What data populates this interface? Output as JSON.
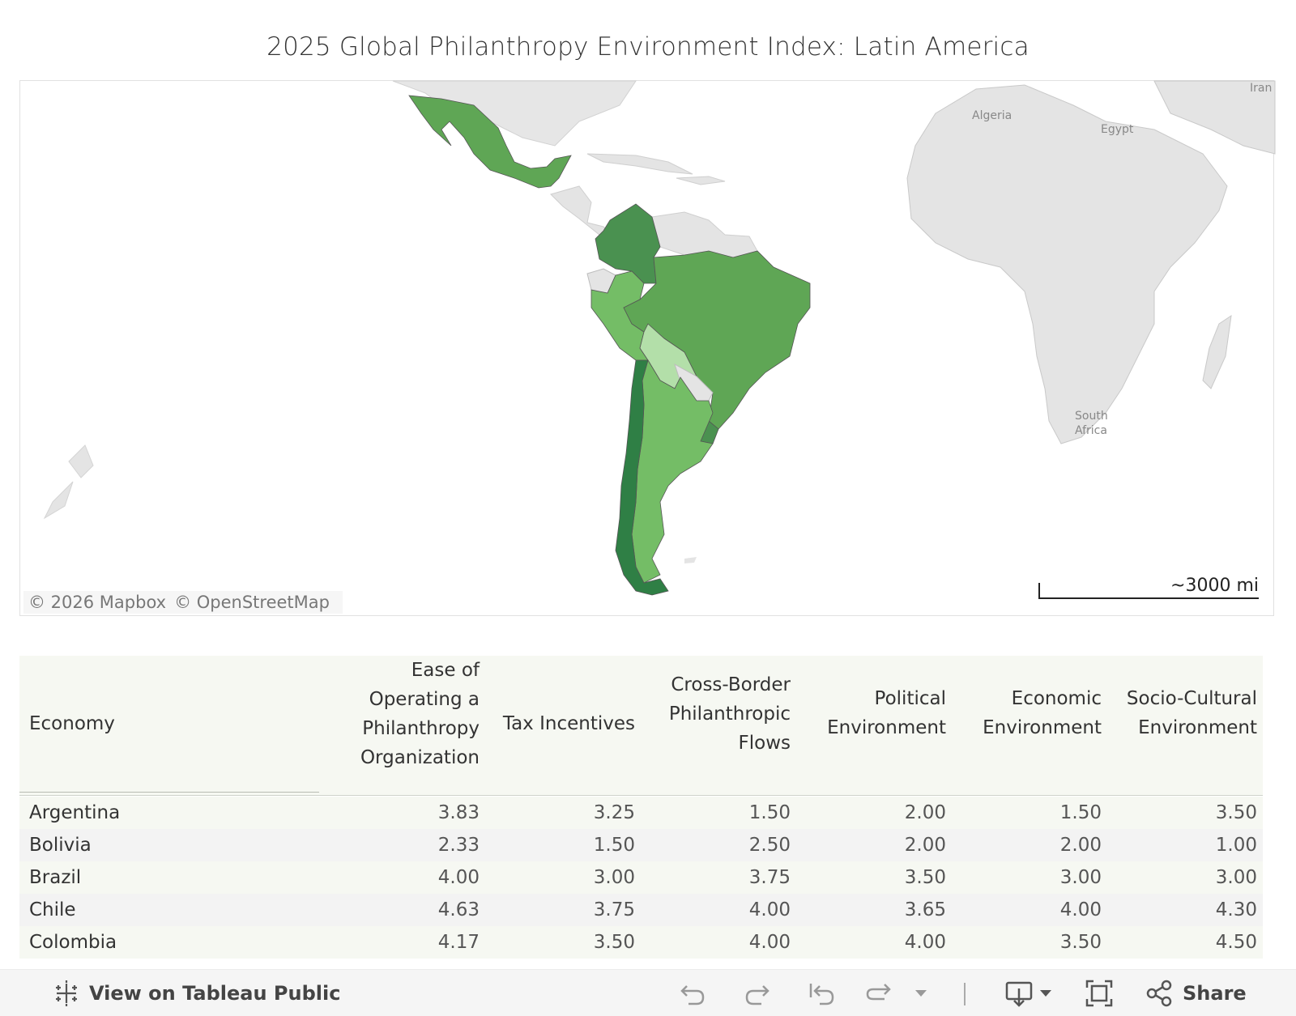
{
  "dashboard": {
    "title": "2025 Global Philanthropy Environment Index: Latin America"
  },
  "map": {
    "attribution": [
      "© 2026 Mapbox",
      "© OpenStreetMap"
    ],
    "scale_label": "~3000 mi",
    "basemap_labels": [
      "Algeria",
      "Egypt",
      "Iran",
      "South Africa"
    ],
    "colors": {
      "land": "#e4e4e4",
      "border": "#c8c8c8",
      "shade_lightest": "#b3dfa9",
      "shade_light": "#74bd66",
      "shade_mid": "#5fa655",
      "shade_dark": "#4a9150",
      "shade_darkest": "#2f7f45"
    }
  },
  "table": {
    "columns": [
      "Economy",
      "Ease of Operating a Philanthropy Organization",
      "Tax Incentives",
      "Cross-Border Philanthropic Flows",
      "Political Environment",
      "Economic Environment",
      "Socio-Cultural Environment"
    ],
    "rows": [
      {
        "economy": "Argentina",
        "values": [
          "3.83",
          "3.25",
          "1.50",
          "2.00",
          "1.50",
          "3.50"
        ]
      },
      {
        "economy": "Bolivia",
        "values": [
          "2.33",
          "1.50",
          "2.50",
          "2.00",
          "2.00",
          "1.00"
        ]
      },
      {
        "economy": "Brazil",
        "values": [
          "4.00",
          "3.00",
          "3.75",
          "3.50",
          "3.00",
          "3.00"
        ]
      },
      {
        "economy": "Chile",
        "values": [
          "4.63",
          "3.75",
          "4.00",
          "3.65",
          "4.00",
          "4.30"
        ]
      },
      {
        "economy": "Colombia",
        "values": [
          "4.17",
          "3.50",
          "4.00",
          "4.00",
          "3.50",
          "4.50"
        ]
      }
    ]
  },
  "toolbar": {
    "view_label": "View on Tableau Public",
    "share_label": "Share",
    "icons": [
      "tableau-logo-icon",
      "undo-icon",
      "redo-icon",
      "revert-icon",
      "refresh-icon",
      "pause-dropdown-icon",
      "download-icon",
      "fullscreen-icon",
      "share-icon"
    ]
  }
}
